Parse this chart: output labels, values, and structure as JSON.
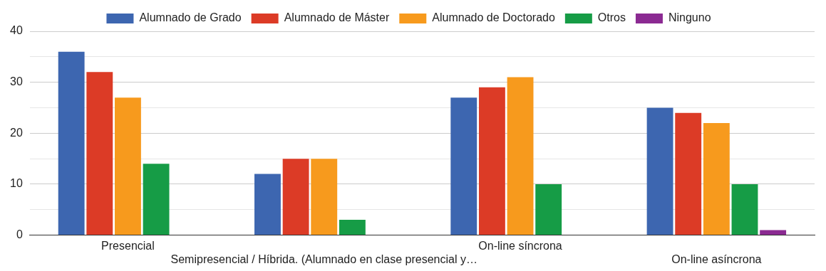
{
  "chart_data": {
    "type": "bar",
    "categories": [
      "Presencial",
      "Semipresencial / Híbrida. (Alumnado en clase presencial y…",
      "On-line síncrona",
      "On-line asíncrona"
    ],
    "series": [
      {
        "name": "Alumnado de Grado",
        "color": "#3d66b0",
        "values": [
          36,
          12,
          27,
          25
        ]
      },
      {
        "name": "Alumnado de Máster",
        "color": "#dc3b26",
        "values": [
          32,
          15,
          29,
          24
        ]
      },
      {
        "name": "Alumnado de Doctorado",
        "color": "#f79a1d",
        "values": [
          27,
          15,
          31,
          22
        ]
      },
      {
        "name": "Otros",
        "color": "#169c46",
        "values": [
          14,
          3,
          10,
          10
        ]
      },
      {
        "name": "Ninguno",
        "color": "#8b2a92",
        "values": [
          0,
          0,
          0,
          1
        ]
      }
    ],
    "ylim": [
      0,
      40
    ],
    "yticks": [
      0,
      {
        "value": 5,
        "label": null
      },
      10,
      {
        "value": 15,
        "label": null
      },
      20,
      {
        "value": 25,
        "label": null
      },
      30,
      {
        "value": 35,
        "label": null
      },
      40
    ],
    "grid": "y",
    "legend": "top"
  }
}
